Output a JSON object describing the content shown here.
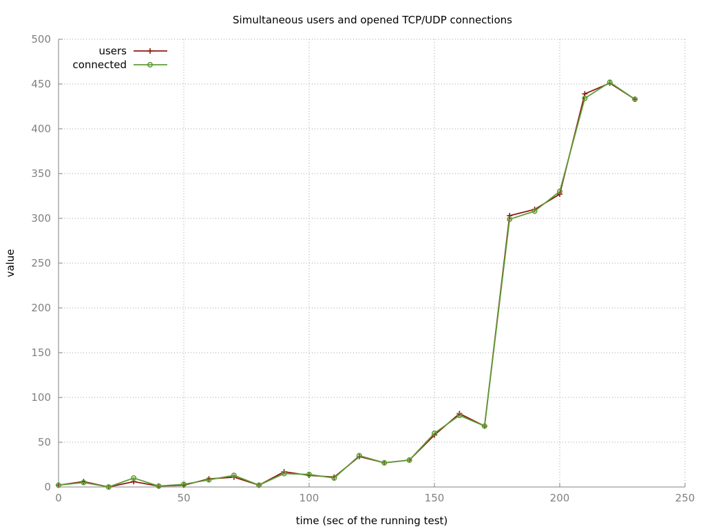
{
  "chart_data": {
    "type": "line",
    "title": "Simultaneous users and opened TCP/UDP connections",
    "xlabel": "time (sec of the running test)",
    "ylabel": "value",
    "xlim": [
      0,
      250
    ],
    "ylim": [
      0,
      500
    ],
    "x_ticks": [
      "0",
      "50",
      "100",
      "150",
      "200",
      "250"
    ],
    "x_tick_values": [
      0,
      50,
      100,
      150,
      200,
      250
    ],
    "y_ticks": [
      "0",
      "50",
      "100",
      "150",
      "200",
      "250",
      "300",
      "350",
      "400",
      "450",
      "500"
    ],
    "y_tick_values": [
      0,
      50,
      100,
      150,
      200,
      250,
      300,
      350,
      400,
      450,
      500
    ],
    "grid": true,
    "legend_position": "top-left",
    "x": [
      0,
      10,
      20,
      30,
      40,
      50,
      60,
      70,
      80,
      90,
      100,
      110,
      120,
      130,
      140,
      150,
      160,
      170,
      180,
      190,
      200,
      210,
      220,
      230
    ],
    "series": [
      {
        "name": "users",
        "color": "#8b1a0e",
        "marker": "plus",
        "values": [
          2,
          6,
          0,
          6,
          1,
          2,
          9,
          11,
          2,
          17,
          13,
          11,
          34,
          27,
          30,
          58,
          82,
          68,
          303,
          310,
          327,
          439,
          451,
          433
        ]
      },
      {
        "name": "connected",
        "color": "#5e9c36",
        "marker": "circle",
        "values": [
          2,
          5,
          0,
          10,
          1,
          3,
          8,
          13,
          2,
          15,
          14,
          10,
          35,
          27,
          30,
          60,
          80,
          68,
          299,
          308,
          330,
          434,
          452,
          433
        ]
      }
    ]
  }
}
